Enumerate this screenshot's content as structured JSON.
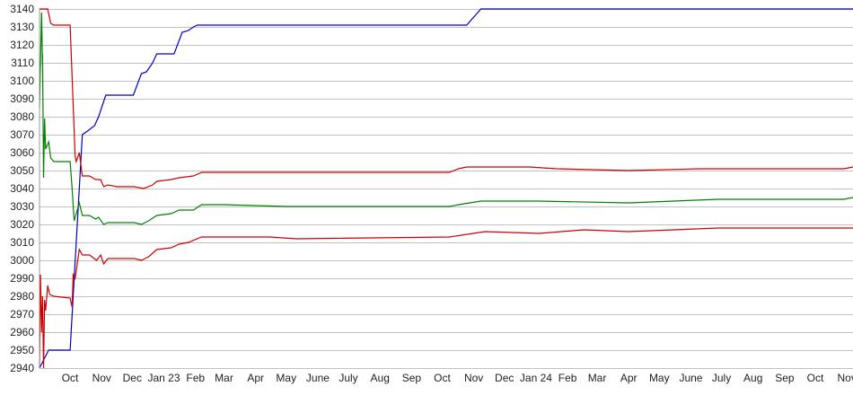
{
  "chart_data": {
    "type": "line",
    "title": "",
    "xlabel": "",
    "ylabel": "",
    "xlim": [
      "2022-09-01",
      "2024-11-07"
    ],
    "ylim": [
      2940,
      3140
    ],
    "grid": "horizontal",
    "y_ticks": [
      2940,
      2950,
      2960,
      2970,
      2980,
      2990,
      3000,
      3010,
      3020,
      3030,
      3040,
      3050,
      3060,
      3070,
      3080,
      3090,
      3100,
      3110,
      3120,
      3130,
      3140
    ],
    "x_ticks": [
      {
        "date": "2022-10-01",
        "label": "Oct"
      },
      {
        "date": "2022-11-01",
        "label": "Nov"
      },
      {
        "date": "2022-12-01",
        "label": "Dec"
      },
      {
        "date": "2023-01-01",
        "label": "Jan 23"
      },
      {
        "date": "2023-02-01",
        "label": "Feb"
      },
      {
        "date": "2023-03-01",
        "label": "Mar"
      },
      {
        "date": "2023-04-01",
        "label": "Apr"
      },
      {
        "date": "2023-05-01",
        "label": "May"
      },
      {
        "date": "2023-06-01",
        "label": "June"
      },
      {
        "date": "2023-07-01",
        "label": "July"
      },
      {
        "date": "2023-08-01",
        "label": "Aug"
      },
      {
        "date": "2023-09-01",
        "label": "Sep"
      },
      {
        "date": "2023-10-01",
        "label": "Oct"
      },
      {
        "date": "2023-11-01",
        "label": "Nov"
      },
      {
        "date": "2023-12-01",
        "label": "Dec"
      },
      {
        "date": "2024-01-01",
        "label": "Jan 24"
      },
      {
        "date": "2024-02-01",
        "label": "Feb"
      },
      {
        "date": "2024-03-01",
        "label": "Mar"
      },
      {
        "date": "2024-04-01",
        "label": "Apr"
      },
      {
        "date": "2024-05-01",
        "label": "May"
      },
      {
        "date": "2024-06-01",
        "label": "June"
      },
      {
        "date": "2024-07-01",
        "label": "July"
      },
      {
        "date": "2024-08-01",
        "label": "Aug"
      },
      {
        "date": "2024-09-01",
        "label": "Sep"
      },
      {
        "date": "2024-10-01",
        "label": "Oct"
      },
      {
        "date": "2024-11-01",
        "label": "Nov"
      }
    ],
    "series": [
      {
        "color": "#0000cc",
        "points": [
          [
            "2022-09-01",
            2940
          ],
          [
            "2022-09-10",
            2950
          ],
          [
            "2022-10-01",
            2950
          ],
          [
            "2022-10-13",
            3070
          ],
          [
            "2022-10-18",
            3072
          ],
          [
            "2022-10-25",
            3075
          ],
          [
            "2022-10-29",
            3080
          ],
          [
            "2022-11-05",
            3092
          ],
          [
            "2022-12-02",
            3092
          ],
          [
            "2022-12-10",
            3104
          ],
          [
            "2022-12-15",
            3105
          ],
          [
            "2022-12-21",
            3110
          ],
          [
            "2022-12-25",
            3115
          ],
          [
            "2023-01-11",
            3115
          ],
          [
            "2023-01-19",
            3127
          ],
          [
            "2023-01-25",
            3128
          ],
          [
            "2023-01-30",
            3130
          ],
          [
            "2023-02-03",
            3131
          ],
          [
            "2023-10-25",
            3131
          ],
          [
            "2023-11-08",
            3140
          ],
          [
            "2024-11-07",
            3140
          ]
        ]
      },
      {
        "color": "#cc0000",
        "points": [
          [
            "2022-09-01",
            3140
          ],
          [
            "2022-09-09",
            3140
          ],
          [
            "2022-09-12",
            3132
          ],
          [
            "2022-09-15",
            3131
          ],
          [
            "2022-10-01",
            3131
          ],
          [
            "2022-10-06",
            3058
          ],
          [
            "2022-10-07",
            3055
          ],
          [
            "2022-10-10",
            3060
          ],
          [
            "2022-10-13",
            3047
          ],
          [
            "2022-10-20",
            3047
          ],
          [
            "2022-10-26",
            3045
          ],
          [
            "2022-10-31",
            3045
          ],
          [
            "2022-11-03",
            3041
          ],
          [
            "2022-11-07",
            3042
          ],
          [
            "2022-11-16",
            3041
          ],
          [
            "2022-12-03",
            3041
          ],
          [
            "2022-12-12",
            3040
          ],
          [
            "2022-12-21",
            3042
          ],
          [
            "2022-12-25",
            3044
          ],
          [
            "2023-01-08",
            3045
          ],
          [
            "2023-01-16",
            3046
          ],
          [
            "2023-01-30",
            3047
          ],
          [
            "2023-02-07",
            3049
          ],
          [
            "2023-10-08",
            3049
          ],
          [
            "2023-10-17",
            3051
          ],
          [
            "2023-10-25",
            3052
          ],
          [
            "2023-12-26",
            3052
          ],
          [
            "2024-01-21",
            3051
          ],
          [
            "2024-04-01",
            3050
          ],
          [
            "2024-06-10",
            3051
          ],
          [
            "2024-10-29",
            3051
          ],
          [
            "2024-11-07",
            3052
          ]
        ]
      },
      {
        "color": "#008000",
        "points": [
          [
            "2022-09-01",
            3085
          ],
          [
            "2022-09-03",
            3138
          ],
          [
            "2022-09-04",
            3108
          ],
          [
            "2022-09-04",
            3115
          ],
          [
            "2022-09-05",
            3046
          ],
          [
            "2022-09-06",
            3079
          ],
          [
            "2022-09-07",
            3062
          ],
          [
            "2022-09-10",
            3066
          ],
          [
            "2022-09-12",
            3057
          ],
          [
            "2022-09-15",
            3055
          ],
          [
            "2022-10-01",
            3055
          ],
          [
            "2022-10-03",
            3040
          ],
          [
            "2022-10-05",
            3022
          ],
          [
            "2022-10-10",
            3032
          ],
          [
            "2022-10-13",
            3025
          ],
          [
            "2022-10-20",
            3025
          ],
          [
            "2022-10-26",
            3023
          ],
          [
            "2022-10-29",
            3024
          ],
          [
            "2022-11-03",
            3020
          ],
          [
            "2022-11-07",
            3021
          ],
          [
            "2022-12-03",
            3021
          ],
          [
            "2022-12-10",
            3020
          ],
          [
            "2022-12-17",
            3022
          ],
          [
            "2022-12-25",
            3025
          ],
          [
            "2023-01-08",
            3026
          ],
          [
            "2023-01-16",
            3028
          ],
          [
            "2023-01-30",
            3028
          ],
          [
            "2023-02-07",
            3031
          ],
          [
            "2023-03-01",
            3031
          ],
          [
            "2023-05-02",
            3030
          ],
          [
            "2023-10-08",
            3030
          ],
          [
            "2023-10-17",
            3031
          ],
          [
            "2023-11-08",
            3033
          ],
          [
            "2024-01-04",
            3033
          ],
          [
            "2024-04-01",
            3032
          ],
          [
            "2024-06-28",
            3034
          ],
          [
            "2024-10-29",
            3034
          ],
          [
            "2024-11-07",
            3035
          ]
        ]
      },
      {
        "color": "#cc0000",
        "points": [
          [
            "2022-09-01",
            2940
          ],
          [
            "2022-09-02",
            2992
          ],
          [
            "2022-09-03",
            2960
          ],
          [
            "2022-09-04",
            2980
          ],
          [
            "2022-09-05",
            2940
          ],
          [
            "2022-09-06",
            2978
          ],
          [
            "2022-09-07",
            2972
          ],
          [
            "2022-09-09",
            2986
          ],
          [
            "2022-09-11",
            2981
          ],
          [
            "2022-09-15",
            2980
          ],
          [
            "2022-10-01",
            2979
          ],
          [
            "2022-10-03",
            2974
          ],
          [
            "2022-10-04",
            2992
          ],
          [
            "2022-10-06",
            2990
          ],
          [
            "2022-10-10",
            3006
          ],
          [
            "2022-10-13",
            3003
          ],
          [
            "2022-10-20",
            3003
          ],
          [
            "2022-10-27",
            3000
          ],
          [
            "2022-10-31",
            3003
          ],
          [
            "2022-11-03",
            2998
          ],
          [
            "2022-11-07",
            3001
          ],
          [
            "2022-12-03",
            3001
          ],
          [
            "2022-12-10",
            3000
          ],
          [
            "2022-12-17",
            3002
          ],
          [
            "2022-12-25",
            3006
          ],
          [
            "2023-01-08",
            3007
          ],
          [
            "2023-01-16",
            3009
          ],
          [
            "2023-01-25",
            3010
          ],
          [
            "2023-02-07",
            3013
          ],
          [
            "2023-04-15",
            3013
          ],
          [
            "2023-05-11",
            3012
          ],
          [
            "2023-10-08",
            3013
          ],
          [
            "2023-11-12",
            3016
          ],
          [
            "2024-01-04",
            3015
          ],
          [
            "2024-02-17",
            3017
          ],
          [
            "2024-04-01",
            3016
          ],
          [
            "2024-06-28",
            3018
          ],
          [
            "2024-11-07",
            3018
          ]
        ]
      }
    ]
  }
}
